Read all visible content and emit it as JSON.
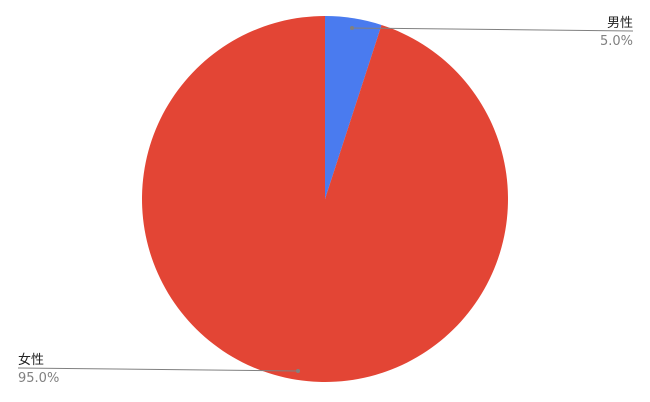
{
  "chart_data": {
    "type": "pie",
    "categories": [
      "男性",
      "女性"
    ],
    "values": [
      5.0,
      95.0
    ],
    "value_labels": [
      "5.0%",
      "95.0%"
    ],
    "colors": [
      "#4a7bef",
      "#e34535"
    ],
    "start_angle": "top, clockwise",
    "legend": "none (leader-line labels)",
    "leader_line_color": "#808080"
  }
}
